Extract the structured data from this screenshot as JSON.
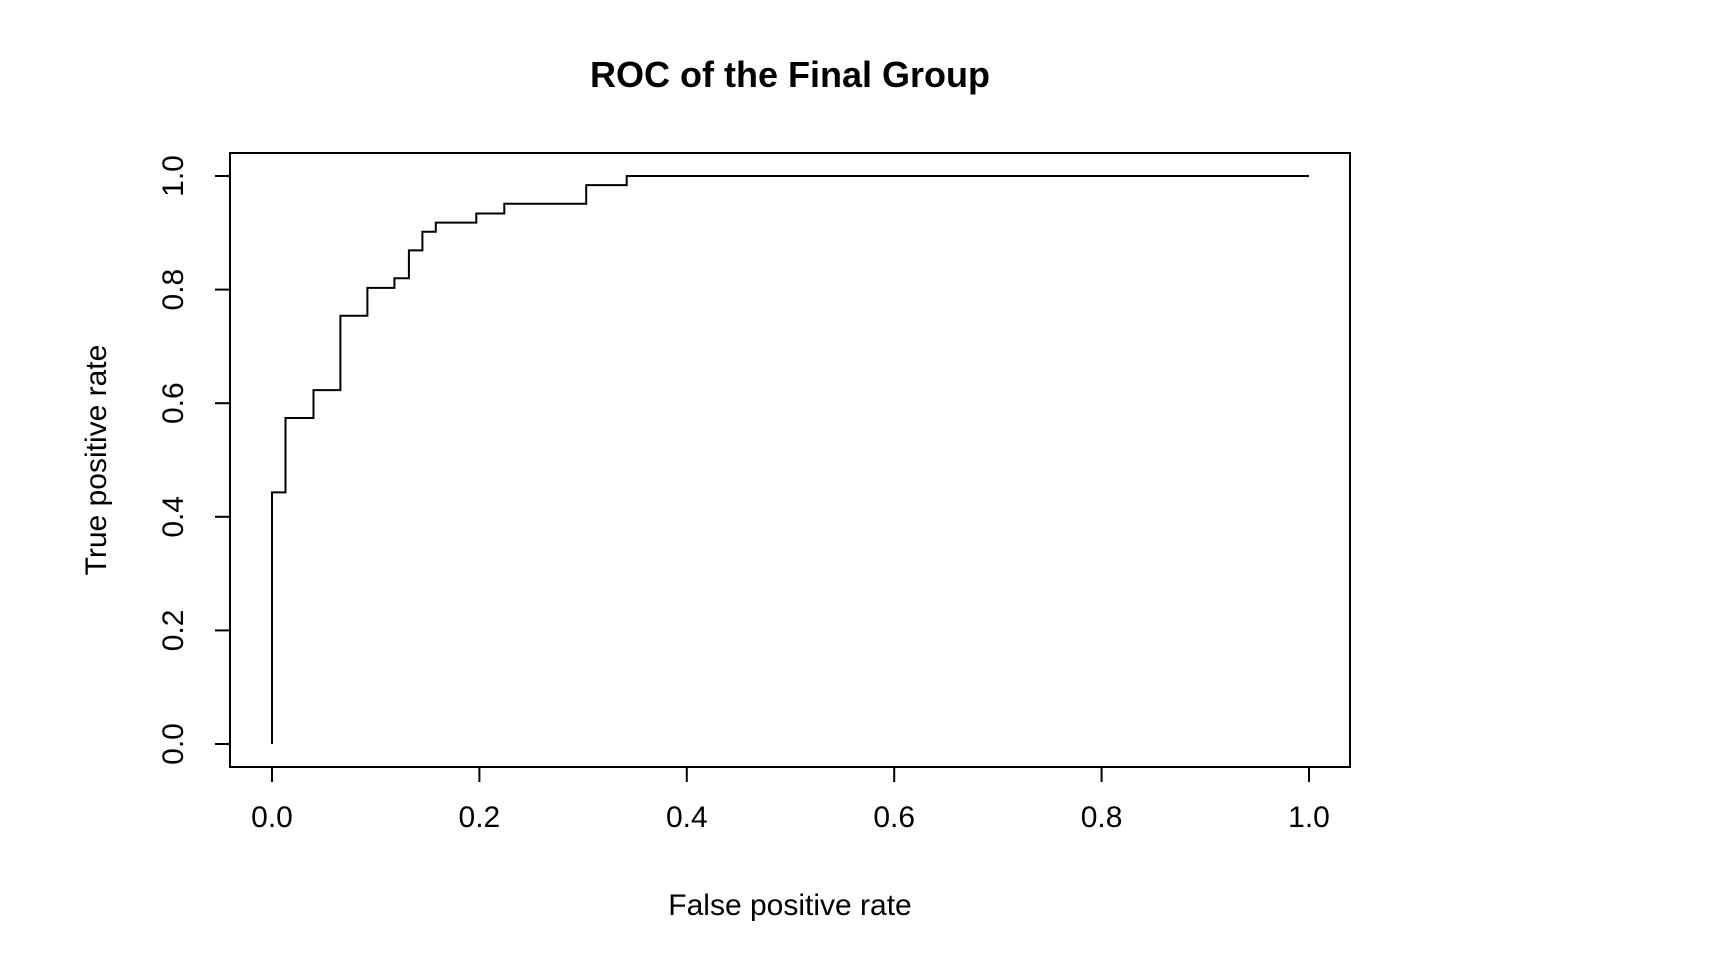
{
  "chart_data": {
    "type": "line",
    "title": "ROC of the Final Group",
    "xlabel": "False positive rate",
    "ylabel": "True positive rate",
    "xlim": [
      0,
      1
    ],
    "ylim": [
      0,
      1
    ],
    "xticks": [
      "0.0",
      "0.2",
      "0.4",
      "0.6",
      "0.8",
      "1.0"
    ],
    "yticks": [
      "0.0",
      "0.2",
      "0.4",
      "0.6",
      "0.8",
      "1.0"
    ],
    "grid": false,
    "line_color": "#000000",
    "series": [
      {
        "x": [
          0,
          0,
          0.013,
          0.013,
          0.04,
          0.04,
          0.066,
          0.066,
          0.092,
          0.092,
          0.118,
          0.118,
          0.132,
          0.132,
          0.145,
          0.145,
          0.158,
          0.158,
          0.197,
          0.197,
          0.224,
          0.224,
          0.303,
          0.303,
          0.342,
          0.342,
          1.0
        ],
        "y": [
          0,
          0.443,
          0.443,
          0.574,
          0.574,
          0.623,
          0.623,
          0.754,
          0.754,
          0.803,
          0.803,
          0.82,
          0.82,
          0.869,
          0.869,
          0.902,
          0.902,
          0.918,
          0.918,
          0.934,
          0.934,
          0.951,
          0.951,
          0.984,
          0.984,
          1.0,
          1.0
        ]
      }
    ]
  }
}
